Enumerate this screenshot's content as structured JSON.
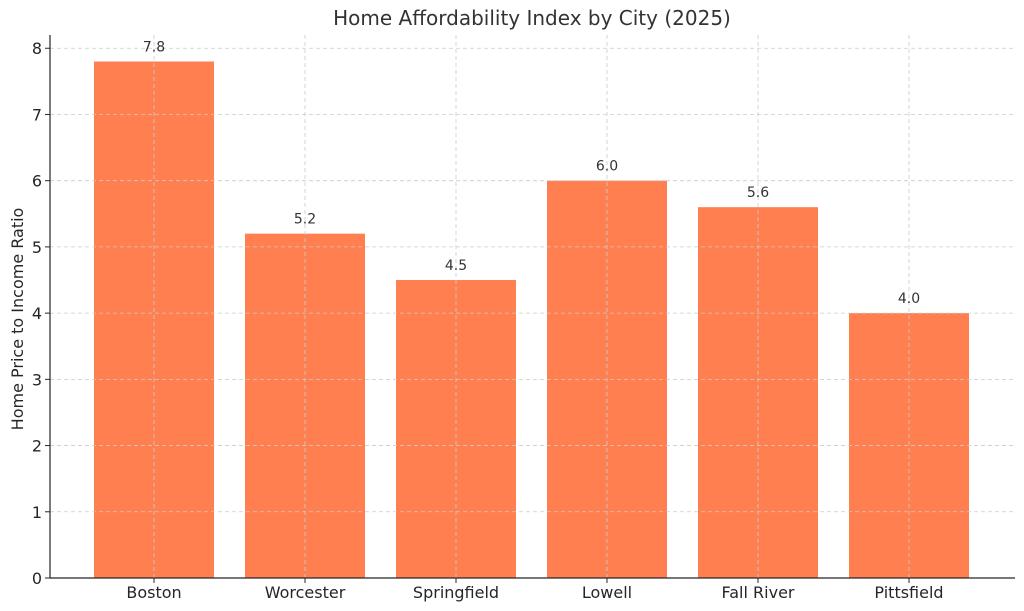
{
  "chart_data": {
    "type": "bar",
    "title": "Home Affordability Index by City (2025)",
    "xlabel": "",
    "ylabel": "Home Price to Income Ratio",
    "categories": [
      "Boston",
      "Worcester",
      "Springfield",
      "Lowell",
      "Fall River",
      "Pittsfield"
    ],
    "values": [
      7.8,
      5.2,
      4.5,
      6.0,
      5.6,
      4.0
    ],
    "data_labels": [
      "7.8",
      "5.2",
      "4.5",
      "6.0",
      "5.6",
      "4.0"
    ],
    "ylim": [
      0,
      8.2
    ],
    "yticks": [
      0,
      1,
      2,
      3,
      4,
      5,
      6,
      7,
      8
    ],
    "grid": true,
    "bar_color": "#FF7F50"
  }
}
